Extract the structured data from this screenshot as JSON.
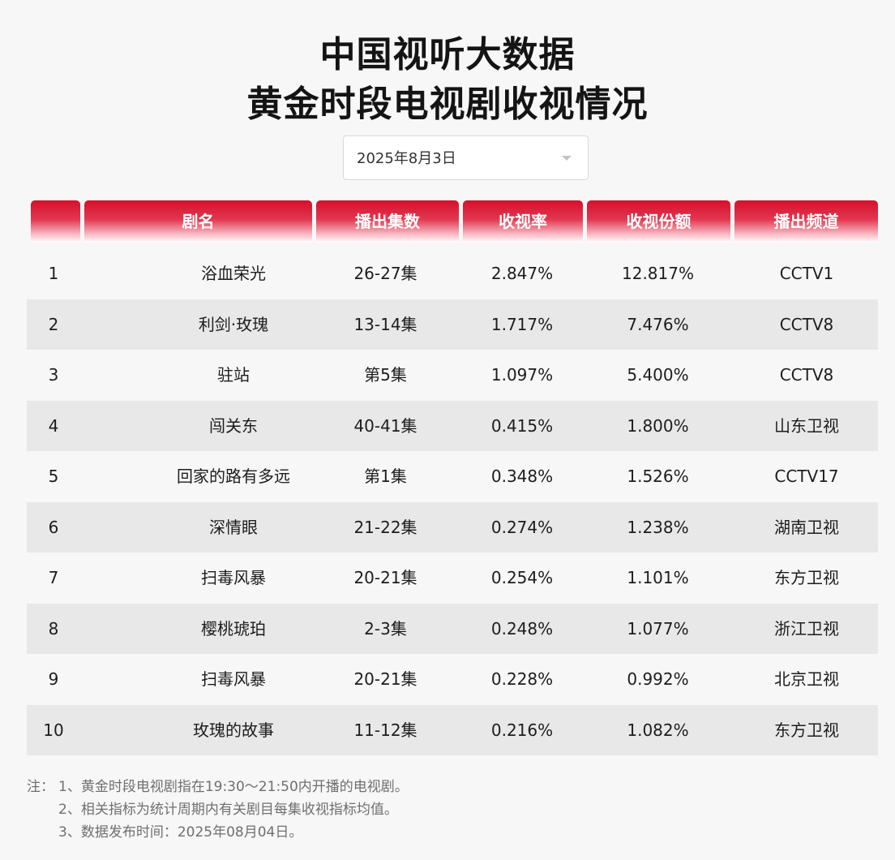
{
  "title": {
    "line1": "中国视听大数据",
    "line2": "黄金时段电视剧收视情况"
  },
  "date_select": {
    "value": "2025年8月3日"
  },
  "table": {
    "columns": [
      "",
      "剧名",
      "播出集数",
      "收视率",
      "收视份额",
      "播出频道"
    ],
    "rows": [
      {
        "rank": "1",
        "name": "浴血荣光",
        "episodes": "26-27集",
        "rating": "2.847%",
        "share": "12.817%",
        "channel": "CCTV1"
      },
      {
        "rank": "2",
        "name": "利剑·玫瑰",
        "episodes": "13-14集",
        "rating": "1.717%",
        "share": "7.476%",
        "channel": "CCTV8"
      },
      {
        "rank": "3",
        "name": "驻站",
        "episodes": "第5集",
        "rating": "1.097%",
        "share": "5.400%",
        "channel": "CCTV8"
      },
      {
        "rank": "4",
        "name": "闯关东",
        "episodes": "40-41集",
        "rating": "0.415%",
        "share": "1.800%",
        "channel": "山东卫视"
      },
      {
        "rank": "5",
        "name": "回家的路有多远",
        "episodes": "第1集",
        "rating": "0.348%",
        "share": "1.526%",
        "channel": "CCTV17"
      },
      {
        "rank": "6",
        "name": "深情眼",
        "episodes": "21-22集",
        "rating": "0.274%",
        "share": "1.238%",
        "channel": "湖南卫视"
      },
      {
        "rank": "7",
        "name": "扫毒风暴",
        "episodes": "20-21集",
        "rating": "0.254%",
        "share": "1.101%",
        "channel": "东方卫视"
      },
      {
        "rank": "8",
        "name": "樱桃琥珀",
        "episodes": "2-3集",
        "rating": "0.248%",
        "share": "1.077%",
        "channel": "浙江卫视"
      },
      {
        "rank": "9",
        "name": "扫毒风暴",
        "episodes": "20-21集",
        "rating": "0.228%",
        "share": "0.992%",
        "channel": "北京卫视"
      },
      {
        "rank": "10",
        "name": "玫瑰的故事",
        "episodes": "11-12集",
        "rating": "0.216%",
        "share": "1.082%",
        "channel": "东方卫视"
      }
    ]
  },
  "notes": {
    "prefix": "注：",
    "lines": [
      "1、黄金时段电视剧指在19:30～21:50内开播的电视剧。",
      "2、相关指标为统计周期内有关剧目每集收视指标均值。",
      "3、数据发布时间：2025年08月04日。"
    ]
  },
  "colors": {
    "header_red": "#d4102b",
    "row_alt": "#e8e8e8",
    "background": "#f7f7f7"
  }
}
